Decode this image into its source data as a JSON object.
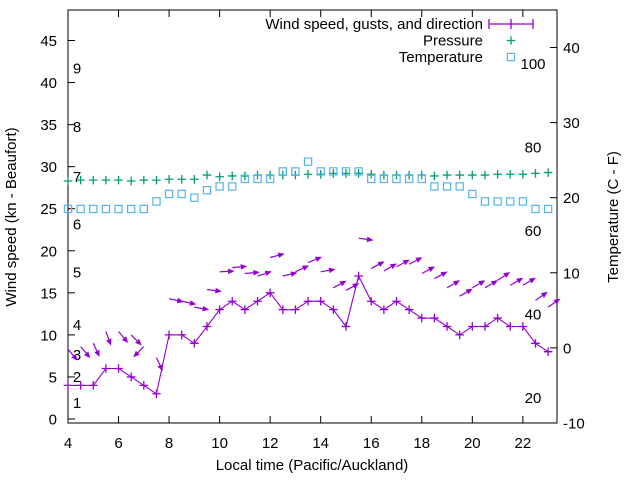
{
  "figure": {
    "background": "#ffffff",
    "border_color": "#000000",
    "legend": [
      {
        "label": "Wind speed, gusts, and direction",
        "glyph": "errorbar",
        "color": "#9400d3"
      },
      {
        "label": "Pressure",
        "glyph": "plus",
        "color": "#009e73"
      },
      {
        "label": "Temperature",
        "glyph": "square",
        "color": "#56b4e9"
      }
    ]
  },
  "chart_data": {
    "type": "line",
    "title": "",
    "xlabel": "Local time (Pacific/Auckland)",
    "ylabel_left": "Wind speed (kn - Beaufort)",
    "ylabel_right": "Temperature (C - F)",
    "x_range": [
      4,
      23.35
    ],
    "y_left_range_kn": [
      -0.5,
      48.6
    ],
    "y_right_range_c": [
      -10,
      45
    ],
    "grid": false,
    "legend_position": "top-right-inside",
    "x_ticks": [
      4,
      6,
      8,
      10,
      12,
      14,
      16,
      18,
      20,
      22
    ],
    "y_left_ticks": [
      0,
      5,
      10,
      15,
      20,
      25,
      30,
      35,
      40,
      45
    ],
    "y_right_ticks": [
      -10,
      0,
      10,
      20,
      30,
      40
    ],
    "beaufort_labels": [
      {
        "text": "1",
        "kn": 1.9
      },
      {
        "text": "2",
        "kn": 5.0
      },
      {
        "text": "3",
        "kn": 7.6
      },
      {
        "text": "4",
        "kn": 11.2
      },
      {
        "text": "5",
        "kn": 17.4
      },
      {
        "text": "6",
        "kn": 23.1
      },
      {
        "text": "7",
        "kn": 28.8
      },
      {
        "text": "8",
        "kn": 34.7
      },
      {
        "text": "9",
        "kn": 41.7
      }
    ],
    "fahrenheit_labels": [
      {
        "text": "20",
        "f": 20
      },
      {
        "text": "40",
        "f": 40
      },
      {
        "text": "60",
        "f": 60
      },
      {
        "text": "80",
        "f": 80
      },
      {
        "text": "100",
        "f": 100
      }
    ],
    "x": [
      4,
      4.5,
      5,
      5.5,
      6,
      6.5,
      7,
      7.5,
      8,
      8.5,
      9,
      9.5,
      10,
      10.5,
      11,
      11.5,
      12,
      12.5,
      13,
      13.5,
      14,
      14.5,
      15,
      15.5,
      16,
      16.5,
      17,
      17.5,
      18,
      18.5,
      19,
      19.5,
      20,
      20.5,
      21,
      21.5,
      22,
      22.5,
      23
    ],
    "series": [
      {
        "name": "Wind speed",
        "unit": "kn",
        "axis": "left",
        "color": "#9400d3",
        "marker": "plus",
        "line": true,
        "values": [
          4,
          4,
          4,
          6,
          6,
          5,
          4,
          3,
          10,
          10,
          9,
          11,
          13,
          14,
          13,
          14,
          15,
          13,
          13,
          14,
          14,
          13,
          11,
          17,
          14,
          13,
          14,
          13,
          12,
          12,
          11,
          10,
          11,
          11,
          12,
          11,
          11,
          9,
          8
        ]
      },
      {
        "name": "Gusts and direction",
        "unit": "kn",
        "axis": "left",
        "color": "#9400d3",
        "marker": "arrow",
        "line": false,
        "values": [
          8.3,
          8.6,
          9.0,
          10.4,
          10.4,
          10.0,
          8.6,
          7.3,
          14.3,
          14.0,
          13.3,
          15.4,
          17.5,
          18.0,
          17.3,
          17.0,
          19.2,
          17.0,
          17.5,
          18.6,
          17.5,
          15.6,
          15.3,
          21.5,
          17.9,
          17.6,
          18.1,
          18.4,
          17.3,
          16.7,
          15.6,
          14.6,
          15.6,
          15.6,
          16.5,
          15.9,
          15.9,
          14.1,
          13.3
        ],
        "directions_deg": [
          -50,
          -50,
          -65,
          -70,
          -50,
          -45,
          -135,
          -65,
          -12,
          -12,
          -10,
          -8,
          3,
          5,
          5,
          18,
          15,
          13,
          25,
          22,
          10,
          28,
          28,
          -8,
          28,
          30,
          28,
          28,
          28,
          28,
          30,
          30,
          30,
          30,
          33,
          30,
          30,
          35,
          35
        ]
      },
      {
        "name": "Pressure",
        "unit": "",
        "axis": "left",
        "color": "#009e73",
        "marker": "plus",
        "line": false,
        "values": [
          28.3,
          28.4,
          28.4,
          28.4,
          28.4,
          28.3,
          28.4,
          28.4,
          28.5,
          28.5,
          28.5,
          29.0,
          28.8,
          28.9,
          28.9,
          29.0,
          29.0,
          29.0,
          29.0,
          29.1,
          29.1,
          29.2,
          29.2,
          29.2,
          29.1,
          29.0,
          29.0,
          29.0,
          29.0,
          28.9,
          29.0,
          29.0,
          29.0,
          29.0,
          29.1,
          29.1,
          29.1,
          29.2,
          29.3
        ]
      },
      {
        "name": "Temperature",
        "unit": "C",
        "axis": "right",
        "color": "#56b4e9",
        "marker": "square",
        "line": false,
        "values": [
          18.5,
          18.5,
          18.5,
          18.5,
          18.5,
          18.5,
          18.5,
          19.5,
          20.5,
          20.5,
          20.0,
          21.0,
          21.5,
          21.5,
          22.5,
          22.5,
          22.5,
          23.5,
          23.5,
          24.8,
          23.5,
          23.5,
          23.5,
          23.5,
          22.5,
          22.5,
          22.5,
          22.5,
          22.5,
          21.5,
          21.5,
          21.5,
          20.5,
          19.5,
          19.5,
          19.5,
          19.5,
          18.5,
          18.5
        ]
      }
    ]
  }
}
